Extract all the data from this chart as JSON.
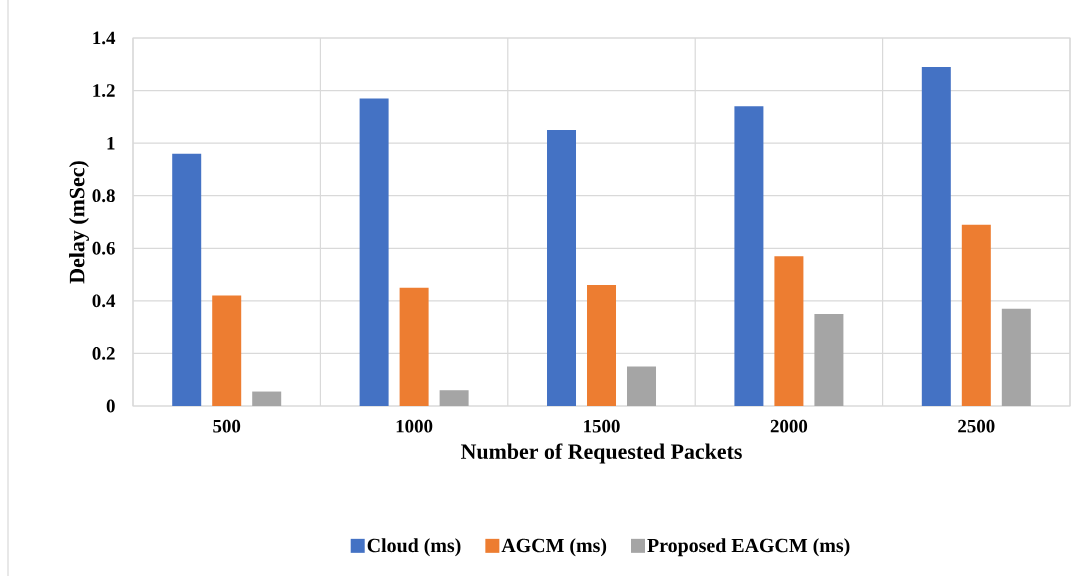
{
  "chart_data": {
    "type": "bar",
    "xlabel": "Number of Requested Packets",
    "ylabel": "Delay (mSec)",
    "categories": [
      "500",
      "1000",
      "1500",
      "2000",
      "2500"
    ],
    "series": [
      {
        "name": "Cloud (ms)",
        "color": "#4472c4",
        "values": [
          0.96,
          1.17,
          1.05,
          1.14,
          1.29
        ]
      },
      {
        "name": "AGCM (ms)",
        "color": "#ed7d31",
        "values": [
          0.42,
          0.45,
          0.46,
          0.57,
          0.69
        ]
      },
      {
        "name": "Proposed EAGCM (ms)",
        "color": "#a5a5a5",
        "values": [
          0.055,
          0.06,
          0.15,
          0.35,
          0.37
        ]
      }
    ],
    "ylim": [
      0,
      1.4
    ],
    "yticks": [
      0,
      0.2,
      0.4,
      0.6,
      0.8,
      1,
      1.2,
      1.4
    ],
    "grid": true,
    "legend": "bottom"
  }
}
